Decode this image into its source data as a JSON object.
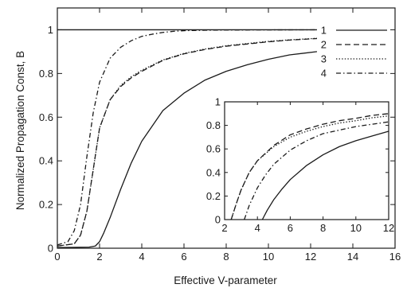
{
  "chart_data": [
    {
      "type": "line",
      "xlabel": "Effective V-parameter",
      "ylabel": "Normalized Propagation Const, B",
      "xlim": [
        0,
        16
      ],
      "ylim": [
        0,
        1.1
      ],
      "xticks": [
        0,
        2,
        4,
        6,
        8,
        10,
        12,
        14,
        16
      ],
      "yticks": [
        0,
        0.2,
        0.4,
        0.6,
        0.8,
        1
      ],
      "xtick_labels": [
        "0",
        "2",
        "4",
        "6",
        "8",
        "10",
        "12",
        "14",
        "16"
      ],
      "ytick_labels": [
        "0",
        "0.2",
        "0.4",
        "0.6",
        "0.8",
        "1"
      ],
      "grid": false,
      "legend": "top-right",
      "series": [
        {
          "name": "1",
          "style": "solid",
          "x": [
            0,
            1.5,
            1.8,
            2.0,
            2.2,
            2.5,
            3,
            3.5,
            4,
            5,
            6,
            7,
            8,
            9,
            10,
            11,
            12.3
          ],
          "y": [
            0.003,
            0.005,
            0.01,
            0.03,
            0.07,
            0.14,
            0.27,
            0.39,
            0.49,
            0.63,
            0.71,
            0.77,
            0.81,
            0.84,
            0.865,
            0.885,
            0.9
          ]
        },
        {
          "name": "2",
          "style": "dashed",
          "x": [
            0,
            0.8,
            1.1,
            1.4,
            1.7,
            2,
            2.5,
            3,
            3.5,
            4,
            5,
            6,
            7,
            8,
            9,
            10,
            11,
            12.3
          ],
          "y": [
            0.01,
            0.02,
            0.06,
            0.17,
            0.36,
            0.55,
            0.68,
            0.74,
            0.78,
            0.81,
            0.86,
            0.89,
            0.91,
            0.925,
            0.935,
            0.945,
            0.953,
            0.96
          ]
        },
        {
          "name": "3",
          "style": "dotted",
          "x": [
            0,
            0.8,
            1.1,
            1.4,
            1.7,
            2,
            2.5,
            3,
            3.5,
            4,
            5,
            6,
            7,
            8,
            9,
            10,
            11,
            12.3
          ],
          "y": [
            0.01,
            0.02,
            0.06,
            0.17,
            0.36,
            0.55,
            0.68,
            0.745,
            0.785,
            0.815,
            0.862,
            0.892,
            0.912,
            0.927,
            0.937,
            0.947,
            0.954,
            0.961
          ]
        },
        {
          "name": "4",
          "style": "dash-dot",
          "x": [
            0,
            0.5,
            0.8,
            1.1,
            1.4,
            1.7,
            2,
            2.5,
            3,
            3.5,
            4,
            4.5,
            5,
            5.5,
            6,
            7,
            8,
            12.3
          ],
          "y": [
            0.015,
            0.03,
            0.08,
            0.2,
            0.42,
            0.62,
            0.76,
            0.87,
            0.92,
            0.95,
            0.97,
            0.98,
            0.988,
            0.993,
            0.996,
            0.998,
            0.999,
            1.0
          ]
        },
        {
          "name": "",
          "style": "solid",
          "x": [
            0,
            12.3
          ],
          "y": [
            1,
            1
          ]
        }
      ]
    },
    {
      "type": "line",
      "position": "inset",
      "xlim": [
        2,
        12
      ],
      "ylim": [
        0,
        1
      ],
      "xticks": [
        2,
        4,
        6,
        8,
        10,
        12
      ],
      "yticks": [
        0,
        0.2,
        0.4,
        0.6,
        0.8,
        1
      ],
      "xtick_labels": [
        "2",
        "4",
        "6",
        "8",
        "10",
        "12"
      ],
      "ytick_labels": [
        "0",
        "0.2",
        "0.4",
        "0.6",
        "0.8",
        "1"
      ],
      "grid": false,
      "series": [
        {
          "style": "solid",
          "x": [
            4.3,
            4.6,
            5,
            5.5,
            6,
            7,
            8,
            9,
            10,
            11,
            12
          ],
          "y": [
            0,
            0.08,
            0.17,
            0.26,
            0.34,
            0.46,
            0.55,
            0.62,
            0.67,
            0.71,
            0.75
          ]
        },
        {
          "style": "dashed",
          "x": [
            2.4,
            2.7,
            3,
            3.5,
            4,
            5,
            6,
            7,
            8,
            9,
            10,
            11,
            12
          ],
          "y": [
            0,
            0.13,
            0.25,
            0.4,
            0.5,
            0.63,
            0.72,
            0.77,
            0.81,
            0.84,
            0.86,
            0.885,
            0.9
          ]
        },
        {
          "style": "dotted",
          "x": [
            2.4,
            2.7,
            3,
            3.5,
            4,
            5,
            6,
            7,
            8,
            9,
            10,
            11,
            12
          ],
          "y": [
            0,
            0.13,
            0.25,
            0.4,
            0.5,
            0.62,
            0.7,
            0.75,
            0.79,
            0.82,
            0.84,
            0.865,
            0.88
          ]
        },
        {
          "style": "dash-dot",
          "x": [
            3.2,
            3.5,
            4,
            4.5,
            5,
            6,
            7,
            8,
            9,
            10,
            11,
            12
          ],
          "y": [
            0,
            0.12,
            0.27,
            0.38,
            0.47,
            0.59,
            0.67,
            0.73,
            0.76,
            0.79,
            0.81,
            0.83
          ]
        }
      ]
    }
  ]
}
